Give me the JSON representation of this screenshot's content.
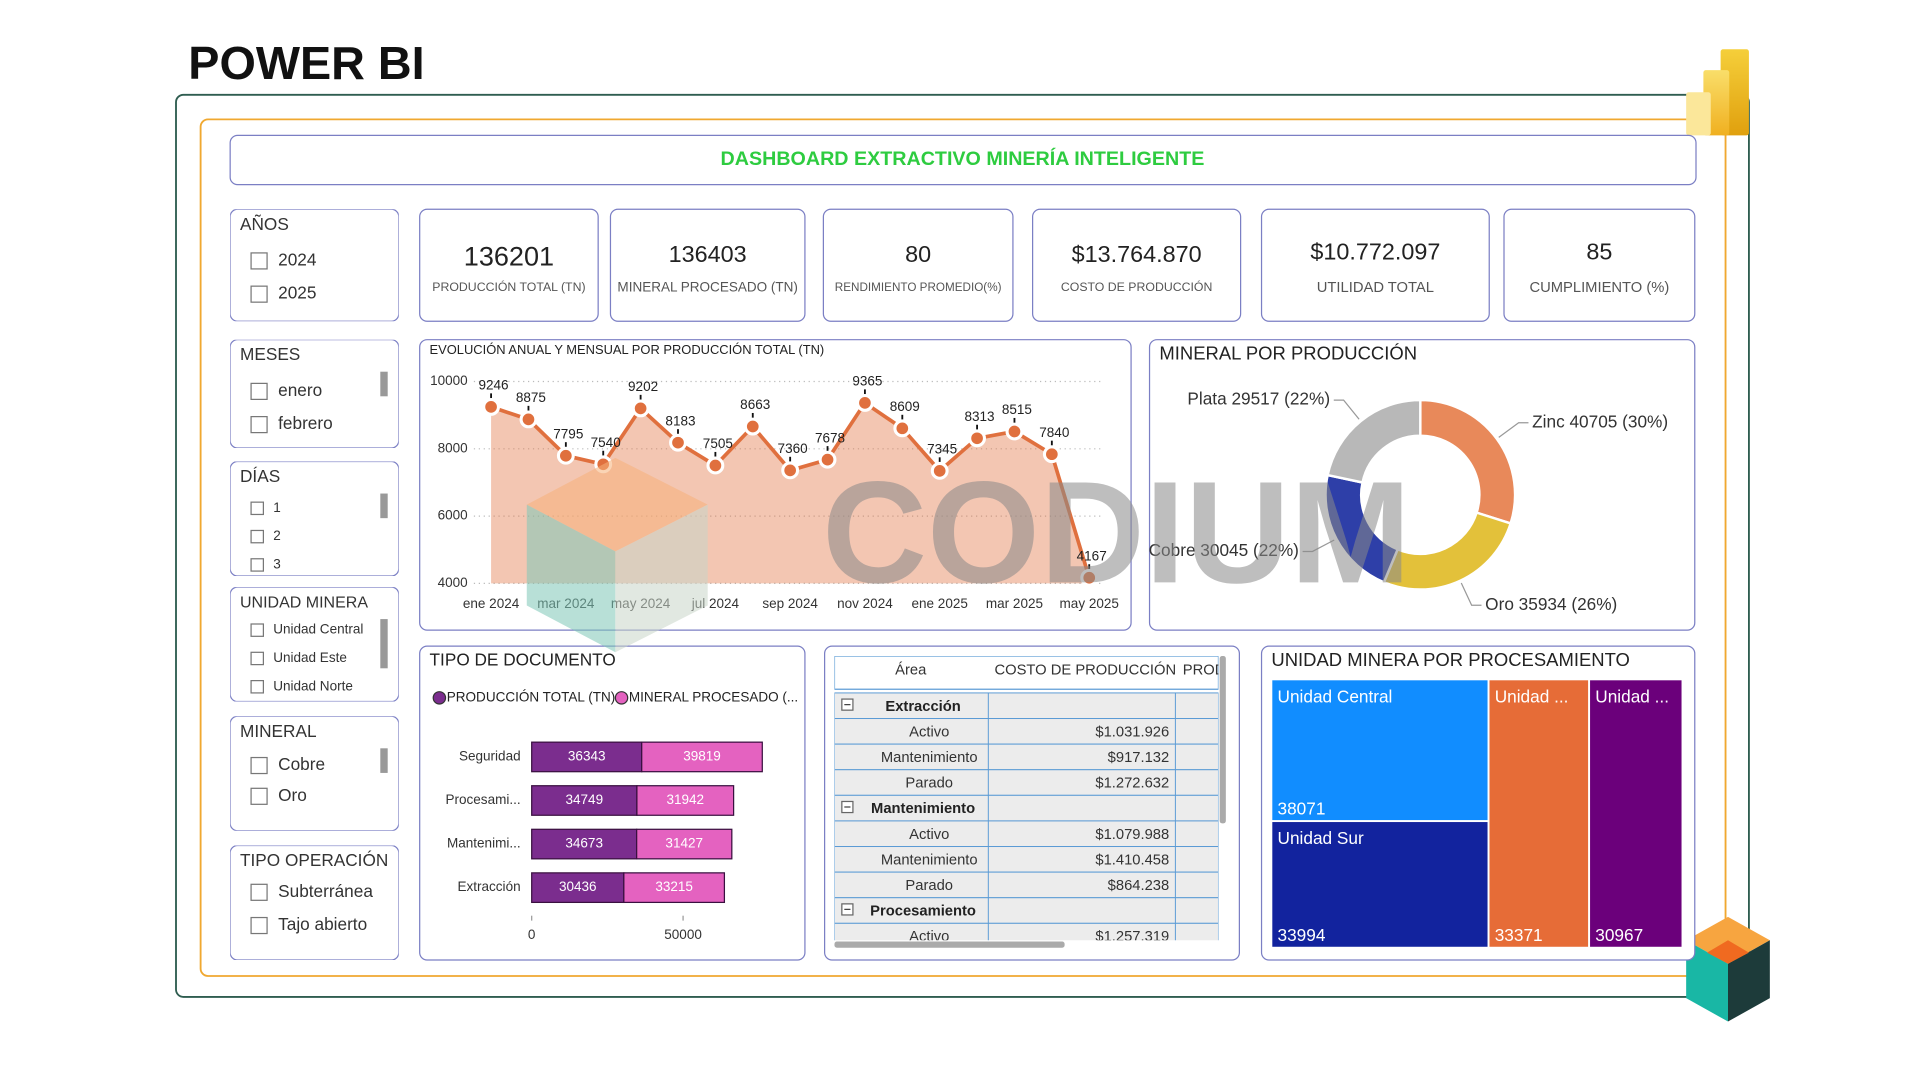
{
  "header": {
    "brand": "POWER BI",
    "title": "DASHBOARD EXTRACTIVO MINERÍA INTELIGENTE"
  },
  "slicers": [
    {
      "title": "AÑOS",
      "items": [
        "2024",
        "2025"
      ]
    },
    {
      "title": "MESES",
      "items": [
        "enero",
        "febrero"
      ]
    },
    {
      "title": "DÍAS",
      "items": [
        "1",
        "2",
        "3"
      ]
    },
    {
      "title": "UNIDAD MINERA",
      "items": [
        "Unidad Central",
        "Unidad Este",
        "Unidad Norte"
      ]
    },
    {
      "title": "MINERAL",
      "items": [
        "Cobre",
        "Oro"
      ]
    },
    {
      "title": "TIPO OPERACIÓN",
      "items": [
        "Subterránea",
        "Tajo abierto"
      ]
    }
  ],
  "kpis": [
    {
      "value": 136201,
      "label": "PRODUCCIÓN TOTAL (TN)"
    },
    {
      "value": 136403,
      "label": "MINERAL PROCESADO (TN)"
    },
    {
      "value": 80,
      "label": "RENDIMIENTO PROMEDIO(%)"
    },
    {
      "value": "$13.764.870",
      "label": "COSTO DE PRODUCCIÓN"
    },
    {
      "value": "$10.772.097",
      "label": "UTILIDAD TOTAL"
    },
    {
      "value": 85,
      "label": "CUMPLIMIENTO (%)"
    }
  ],
  "watermark": "CODIUM",
  "table": {
    "columns": [
      "Área",
      "COSTO DE PRODUCCIÓN",
      "PROD"
    ],
    "groups": [
      {
        "name": "Extracción",
        "rows": [
          {
            "area": "Activo",
            "cost": "$1.031.926"
          },
          {
            "area": "Mantenimiento",
            "cost": "$917.132"
          },
          {
            "area": "Parado",
            "cost": "$1.272.632"
          }
        ]
      },
      {
        "name": "Mantenimiento",
        "rows": [
          {
            "area": "Activo",
            "cost": "$1.079.988"
          },
          {
            "area": "Mantenimiento",
            "cost": "$1.410.458"
          },
          {
            "area": "Parado",
            "cost": "$864.238"
          }
        ]
      },
      {
        "name": "Procesamiento",
        "rows": [
          {
            "area": "Activo",
            "cost": "$1.257.319"
          }
        ]
      }
    ]
  },
  "chart_data": [
    {
      "type": "line",
      "title": "EVOLUCIÓN ANUAL Y MENSUAL POR PRODUCCIÓN TOTAL (TN)",
      "categories": [
        "ene 2024",
        null,
        "mar 2024",
        null,
        "may 2024",
        null,
        "jul 2024",
        null,
        "sep 2024",
        null,
        "nov 2024",
        null,
        "ene 2025",
        null,
        "mar 2025",
        null,
        "may 2025"
      ],
      "values": [
        9246,
        8875,
        7795,
        7540,
        9202,
        8183,
        7505,
        8663,
        7360,
        7678,
        9365,
        8609,
        7345,
        8313,
        8515,
        7840,
        4167
      ],
      "color": "#e0703e",
      "ylim": [
        4000,
        10000
      ],
      "yticks": [
        4000,
        6000,
        8000,
        10000
      ],
      "grid": true
    },
    {
      "type": "bar",
      "orientation": "horizontal",
      "stacked": true,
      "title": "TIPO DE DOCUMENTO",
      "categories": [
        "Seguridad",
        "Procesami...",
        "Mantenimi...",
        "Extracción"
      ],
      "series": [
        {
          "name": "PRODUCCIÓN TOTAL (TN)",
          "color": "#7b2d8e",
          "values": [
            36343,
            34749,
            34673,
            30436
          ]
        },
        {
          "name": "MINERAL PROCESADO (...",
          "color": "#e462c0",
          "values": [
            39819,
            31942,
            31427,
            33215
          ]
        }
      ],
      "xlim": [
        0,
        80000
      ],
      "xticks": [
        0,
        50000
      ]
    },
    {
      "type": "donut",
      "title": "MINERAL POR PRODUCCIÓN",
      "values": [
        40705,
        35934,
        30045,
        29517
      ],
      "value_labels": [
        "Zinc 40705 (30%)",
        "Oro 35934 (26%)",
        "Cobre 30045 (22%)",
        "Plata 29517 (22%)"
      ],
      "colors": [
        "#e8895a",
        "#e3c13a",
        "#2e3fa8",
        "#b8b8b8"
      ]
    },
    {
      "type": "treemap",
      "title": "UNIDAD MINERA POR PROCESAMIENTO",
      "categories": [
        "Unidad Central",
        "Unidad Sur",
        "Unidad ...",
        "Unidad ..."
      ],
      "values": [
        38071,
        33994,
        33371,
        30967
      ],
      "colors": [
        "#118dff",
        "#12239e",
        "#e66c37",
        "#6b007b"
      ]
    }
  ]
}
